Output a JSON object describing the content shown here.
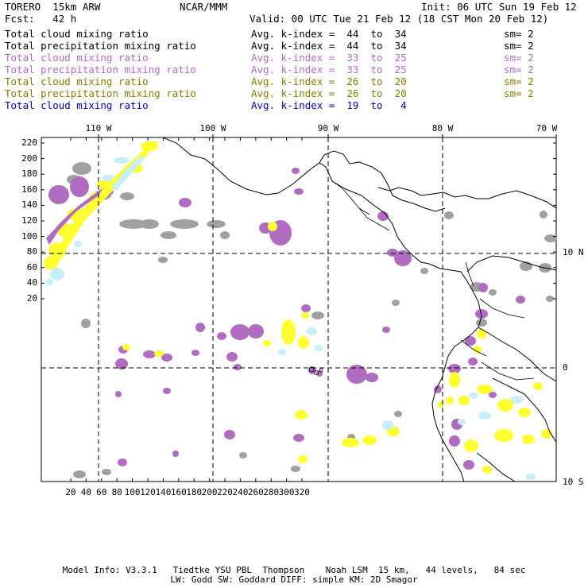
{
  "header": {
    "model": "TORERO  15km ARW",
    "center": "NCAR/MMM",
    "init": "Init: 06 UTC Sun 19 Feb 12",
    "fcst": "Fcst:   42 h",
    "valid": "Valid: 00 UTC Tue 21 Feb 12 (18 CST Mon 20 Feb 12)"
  },
  "legend": [
    {
      "name": "Total cloud mixing ratio",
      "index": "Avg. k-index =  44  to  34",
      "sm": "sm= 2",
      "color": "#000000"
    },
    {
      "name": "Total precipitation mixing ratio",
      "index": "Avg. k-index =  44  to  34",
      "sm": "sm= 2",
      "color": "#000000"
    },
    {
      "name": "Total cloud mixing ratio",
      "index": "Avg. k-index =  33  to  25",
      "sm": "sm= 2",
      "color": "#b06cc0"
    },
    {
      "name": "Total precipitation mixing ratio",
      "index": "Avg. k-index =  33  to  25",
      "sm": "sm= 2",
      "color": "#b06cc0"
    },
    {
      "name": "Total cloud mixing ratio",
      "index": "Avg. k-index =  26  to  20",
      "sm": "sm= 2",
      "color": "#8a7a00"
    },
    {
      "name": "Total precipitation mixing ratio",
      "index": "Avg. k-index =  26  to  20",
      "sm": "sm= 2",
      "color": "#8a7a00"
    },
    {
      "name": "Total cloud mixing ratio",
      "index": "Avg. k-index =  19  to   4",
      "sm": "",
      "color": "#0000cc"
    }
  ],
  "map": {
    "lon_labels": [
      "110 W",
      "100 W",
      "90 W",
      "80 W",
      "70 W"
    ],
    "lat_labels": [
      "10 N",
      "0",
      "10 S"
    ],
    "y_ticks": [
      "220",
      "200",
      "180",
      "160",
      "140",
      "120",
      "100",
      "80",
      "60",
      "40",
      "20"
    ],
    "x_ticks": [
      "20",
      "40",
      "60",
      "80",
      "100",
      "120",
      "140",
      "160",
      "180",
      "200",
      "220",
      "240",
      "260",
      "280",
      "300",
      "320"
    ],
    "colors": {
      "cloud_gray": "#a0a0a0",
      "purple": "#b06cc0",
      "yellow": "#ffff30",
      "lightblue": "#c8eef8",
      "coast": "#000000"
    }
  },
  "footer": {
    "line1": "Model Info: V3.3.1   Tiedtke YSU PBL  Thompson    Noah LSM  15 km,   44 levels,   84 sec",
    "line2": "LW: Godd SW: Goddard DIFF: simple KM: 2D Smagor"
  }
}
